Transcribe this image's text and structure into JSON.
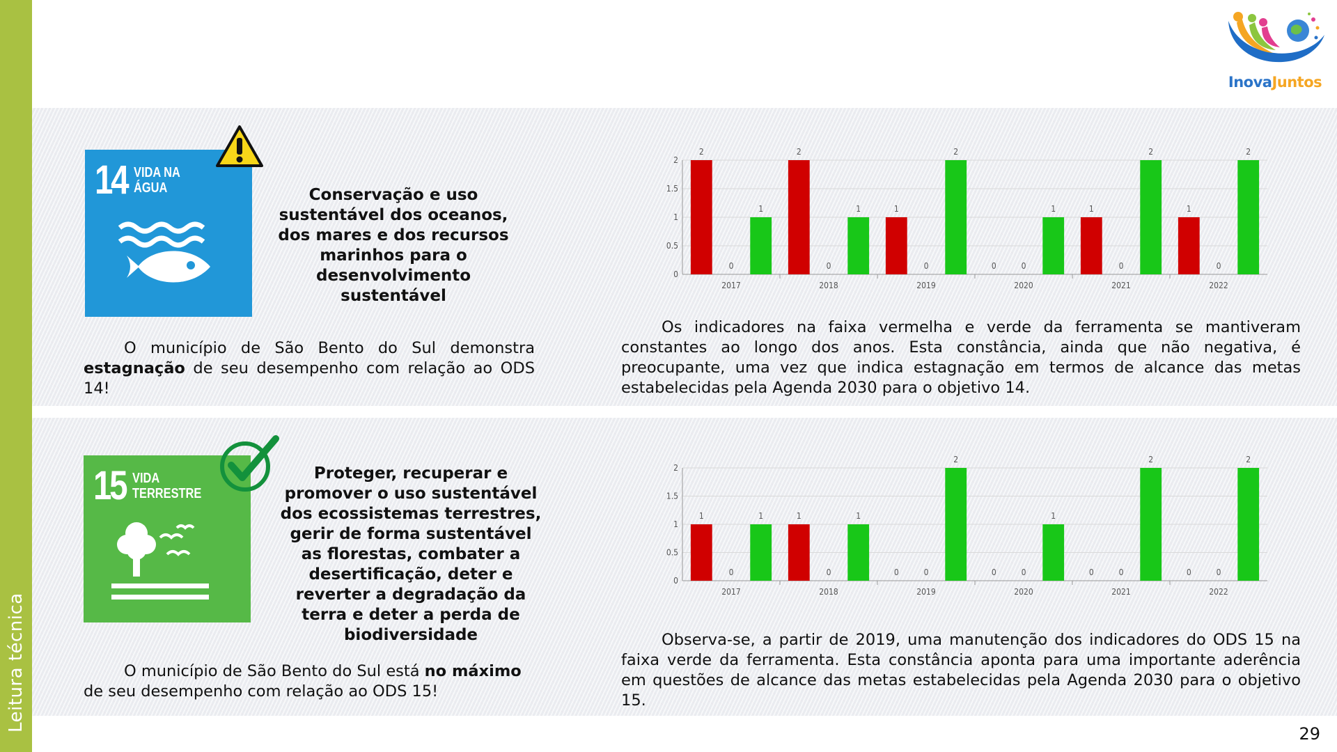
{
  "sidebar": {
    "label": "Leitura técnica"
  },
  "logo": {
    "part1": "Inova",
    "part2": "Juntos"
  },
  "page_number": "29",
  "colors": {
    "sidebar": "#a9c142",
    "sdg14": "#2197d8",
    "sdg15": "#56b947",
    "red_bar": "#d00000",
    "green_bar": "#18c718",
    "warning": "#f7d619",
    "check": "#13913c"
  },
  "section1": {
    "sdg_number": "14",
    "sdg_title_line1": "VIDA NA",
    "sdg_title_line2": "ÁGUA",
    "badge_icon": "warning-icon",
    "goal_text": "Conservação e uso sustentável dos oceanos, dos mares e dos recursos marinhos para o desenvolvimento sustentável",
    "summary_start": "O município de São Bento do Sul demonstra ",
    "summary_bold": "estagnação",
    "summary_end": " de seu desempenho com relação ao ODS 14!",
    "description": "Os indicadores na faixa vermelha e verde da ferramenta se mantiveram constantes ao longo dos anos. Esta constância, ainda que não negativa, é preocupante, uma vez que indica estagnação em termos de alcance das metas estabelecidas pela Agenda 2030 para o objetivo 14."
  },
  "section2": {
    "sdg_number": "15",
    "sdg_title_line1": "VIDA",
    "sdg_title_line2": "TERRESTRE",
    "badge_icon": "checkmark-icon",
    "goal_text": "Proteger, recuperar e promover o uso sustentável dos ecossistemas terrestres, gerir de forma sustentável as florestas, combater a desertificação, deter e reverter a degradação da terra e deter a perda de biodiversidade",
    "summary_start": "O município de São Bento do Sul está ",
    "summary_bold": "no máximo",
    "summary_end": " de seu desempenho com relação ao ODS 15!",
    "description": "Observa-se, a partir de 2019, uma manutenção dos indicadores do ODS 15 na faixa verde da ferramenta. Esta constância aponta para uma importante aderência em questões de alcance das metas estabelecidas pela Agenda 2030 para o objetivo 15."
  },
  "chart_data": [
    {
      "type": "bar",
      "categories": [
        "2017",
        "2018",
        "2019",
        "2020",
        "2021",
        "2022"
      ],
      "series": [
        {
          "color": "#d00000",
          "values": [
            2,
            2,
            1,
            0,
            1,
            1
          ]
        },
        {
          "color": "#f0f0f0",
          "values": [
            0,
            0,
            0,
            0,
            0,
            0
          ]
        },
        {
          "color": "#18c718",
          "values": [
            1,
            1,
            2,
            1,
            2,
            2
          ]
        }
      ],
      "ylim": [
        0,
        2
      ],
      "yticks": [
        "0",
        "0.5",
        "1",
        "1.5",
        "2"
      ],
      "grid": true,
      "title": "",
      "xlabel": "",
      "ylabel": ""
    },
    {
      "type": "bar",
      "categories": [
        "2017",
        "2018",
        "2019",
        "2020",
        "2021",
        "2022"
      ],
      "series": [
        {
          "color": "#d00000",
          "values": [
            1,
            1,
            0,
            0,
            0,
            0
          ]
        },
        {
          "color": "#f0f0f0",
          "values": [
            0,
            0,
            0,
            0,
            0,
            0
          ]
        },
        {
          "color": "#18c718",
          "values": [
            1,
            1,
            2,
            1,
            2,
            2
          ]
        }
      ],
      "ylim": [
        0,
        2
      ],
      "yticks": [
        "0",
        "0.5",
        "1",
        "1.5",
        "2"
      ],
      "grid": true,
      "title": "",
      "xlabel": "",
      "ylabel": ""
    }
  ]
}
